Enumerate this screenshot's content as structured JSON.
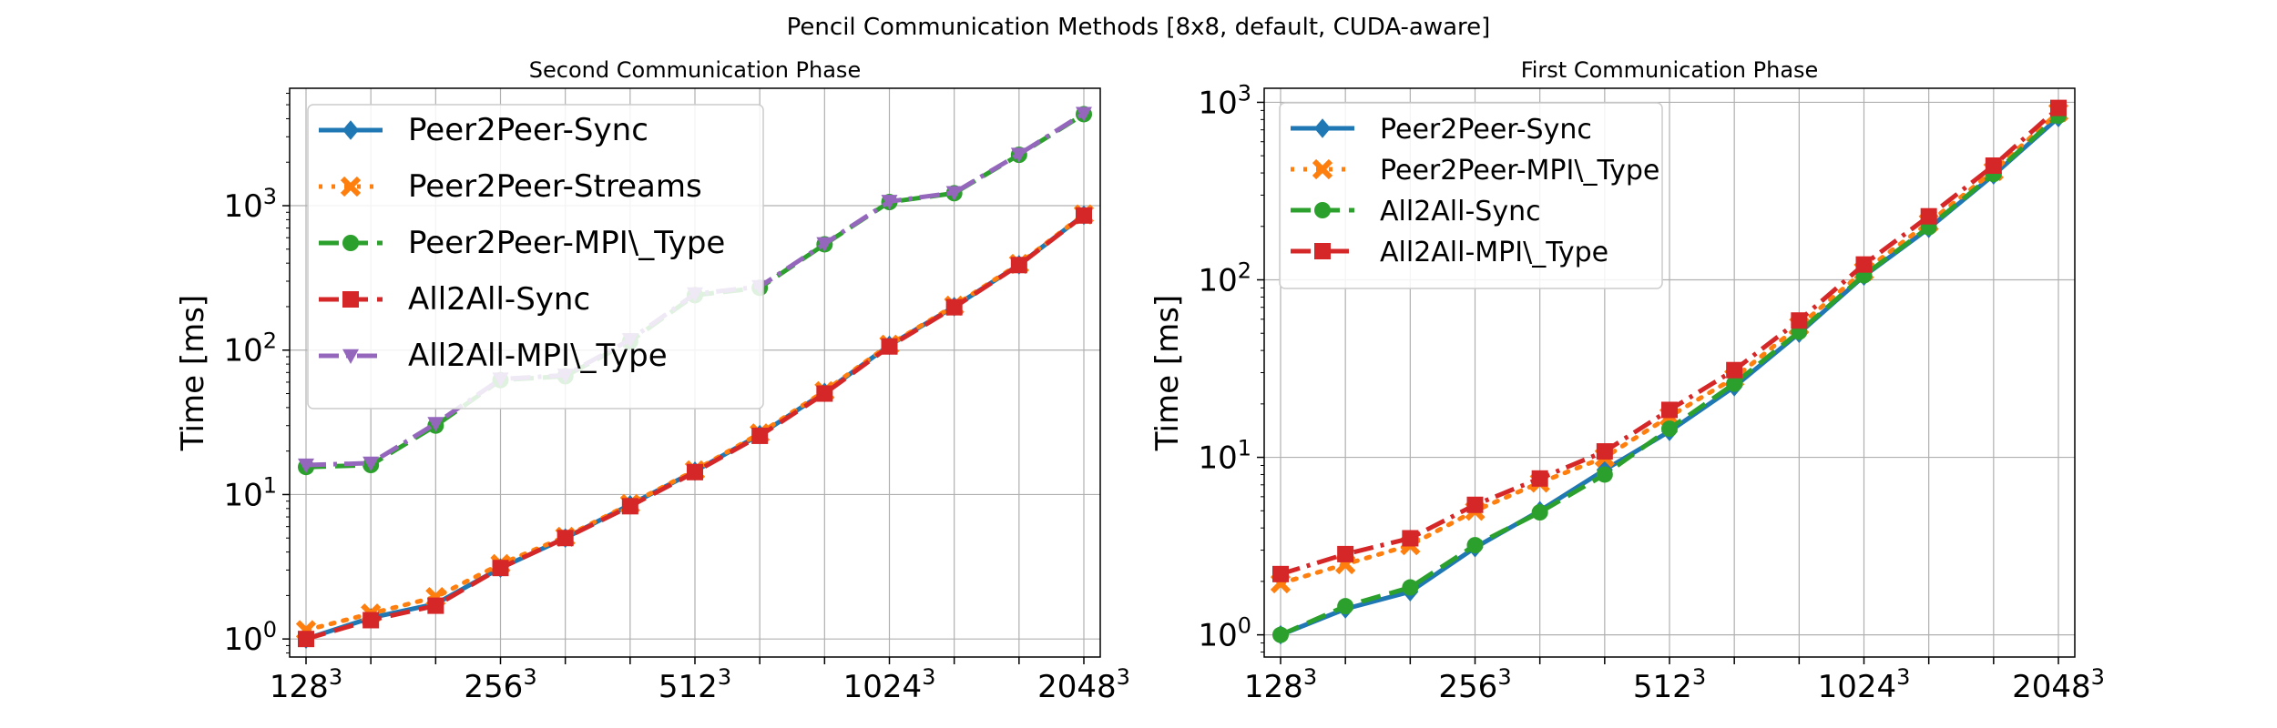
{
  "suptitle": "Pencil Communication Methods [8x8, default, CUDA-aware]",
  "chart_data": [
    {
      "type": "line",
      "title": "Second Communication Phase",
      "xlabel": "",
      "ylabel": "Time [ms]",
      "y_scale": "log",
      "ylim": [
        0.75,
        6500
      ],
      "y_ticks": [
        {
          "value": 1,
          "base": "10",
          "exp": "0"
        },
        {
          "value": 10,
          "base": "10",
          "exp": "1"
        },
        {
          "value": 100,
          "base": "10",
          "exp": "2"
        },
        {
          "value": 1000,
          "base": "10",
          "exp": "3"
        }
      ],
      "x_ticks": [
        {
          "index": 0,
          "base": "128",
          "exp": "3"
        },
        {
          "index": 3,
          "base": "256",
          "exp": "3"
        },
        {
          "index": 6,
          "base": "512",
          "exp": "3"
        },
        {
          "index": 9,
          "base": "1024",
          "exp": "3"
        },
        {
          "index": 12,
          "base": "2048",
          "exp": "3"
        }
      ],
      "grid": true,
      "legend_position": "upper-left",
      "series": [
        {
          "name": "Peer2Peer-Sync",
          "color": "#1f77b4",
          "marker": "diamond",
          "dash": "solid",
          "values": [
            1.0,
            1.4,
            1.75,
            3.1,
            5.0,
            8.5,
            14.5,
            26,
            51,
            108,
            200,
            390,
            860
          ]
        },
        {
          "name": "Peer2Peer-Streams",
          "color": "#ff7f0e",
          "marker": "x",
          "dash": "dotted",
          "values": [
            1.15,
            1.5,
            1.95,
            3.3,
            5.1,
            8.6,
            14.7,
            26.5,
            52,
            109,
            203,
            395,
            870
          ]
        },
        {
          "name": "Peer2Peer-MPI\\_Type",
          "color": "#2ca02c",
          "marker": "circle",
          "dash": "dashed",
          "values": [
            15.5,
            16,
            30,
            62,
            66,
            115,
            240,
            270,
            540,
            1060,
            1220,
            2250,
            4300
          ]
        },
        {
          "name": "All2All-Sync",
          "color": "#d62728",
          "marker": "square",
          "dash": "dashed",
          "values": [
            1.0,
            1.35,
            1.7,
            3.1,
            5.0,
            8.3,
            14.3,
            25.5,
            50,
            106,
            198,
            388,
            855
          ]
        },
        {
          "name": "All2All-MPI\\_Type",
          "color": "#9467bd",
          "marker": "triangle-down",
          "dash": "dashdot",
          "values": [
            16,
            16.5,
            31,
            63,
            67,
            118,
            245,
            275,
            545,
            1070,
            1230,
            2270,
            4350
          ]
        }
      ]
    },
    {
      "type": "line",
      "title": "First Communication Phase",
      "xlabel": "",
      "ylabel": "Time [ms]",
      "y_scale": "log",
      "ylim": [
        0.75,
        1200
      ],
      "y_ticks": [
        {
          "value": 1,
          "base": "10",
          "exp": "0"
        },
        {
          "value": 10,
          "base": "10",
          "exp": "1"
        },
        {
          "value": 100,
          "base": "10",
          "exp": "2"
        },
        {
          "value": 1000,
          "base": "10",
          "exp": "3"
        }
      ],
      "x_ticks": [
        {
          "index": 0,
          "base": "128",
          "exp": "3"
        },
        {
          "index": 3,
          "base": "256",
          "exp": "3"
        },
        {
          "index": 6,
          "base": "512",
          "exp": "3"
        },
        {
          "index": 9,
          "base": "1024",
          "exp": "3"
        },
        {
          "index": 12,
          "base": "2048",
          "exp": "3"
        }
      ],
      "grid": true,
      "legend_position": "upper-left",
      "series": [
        {
          "name": "Peer2Peer-Sync",
          "color": "#1f77b4",
          "marker": "diamond",
          "dash": "solid",
          "values": [
            1.0,
            1.4,
            1.75,
            3.1,
            5.0,
            8.5,
            14,
            25,
            50,
            105,
            195,
            390,
            820
          ]
        },
        {
          "name": "Peer2Peer-MPI\\_Type",
          "color": "#ff7f0e",
          "marker": "x",
          "dash": "dotted",
          "values": [
            1.95,
            2.5,
            3.2,
            5.0,
            7.2,
            10,
            17,
            28,
            55,
            112,
            210,
            410,
            880
          ]
        },
        {
          "name": "All2All-Sync",
          "color": "#2ca02c",
          "marker": "circle",
          "dash": "dashed",
          "values": [
            1.0,
            1.45,
            1.85,
            3.2,
            4.9,
            8.0,
            14.5,
            26,
            51,
            106,
            198,
            395,
            840
          ]
        },
        {
          "name": "All2All-MPI\\_Type",
          "color": "#d62728",
          "marker": "square",
          "dash": "dashdot",
          "values": [
            2.2,
            2.85,
            3.5,
            5.4,
            7.6,
            10.8,
            18.5,
            31,
            59,
            122,
            228,
            440,
            930
          ]
        }
      ]
    }
  ]
}
